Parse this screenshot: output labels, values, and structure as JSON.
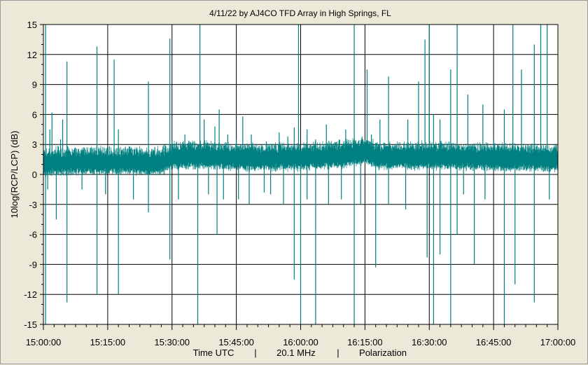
{
  "chart_data": {
    "type": "line",
    "title": "4/11/22  by  AJ4CO TFD Array  in  High Springs, FL",
    "ylabel": "10log(RCP/LCP) (dB)",
    "xlabel_parts": [
      "Time UTC",
      "|",
      "20.1 MHz",
      "|",
      "Polarization"
    ],
    "ylim": [
      -15,
      15
    ],
    "yticks": [
      15,
      12,
      9,
      6,
      3,
      0,
      -3,
      -6,
      -9,
      -12,
      -15
    ],
    "ytick_labels": [
      "15",
      "12",
      "9",
      "6",
      "3",
      "0",
      "-3",
      "-6",
      "-9",
      "-12",
      "-15"
    ],
    "xlim": [
      "15:00:00",
      "17:00:00"
    ],
    "xticks": [
      "15:00:00",
      "15:15:00",
      "15:30:00",
      "15:45:00",
      "16:00:00",
      "16:15:00",
      "16:30:00",
      "16:45:00",
      "17:00:00"
    ],
    "grid": true,
    "colors": {
      "series": "#008080",
      "background": "#ffffff",
      "grid": "#000000"
    },
    "series": [
      {
        "baseline": [
          [
            "15:00:00",
            1.0
          ],
          [
            "15:10:00",
            1.1
          ],
          [
            "15:20:00",
            1.1
          ],
          [
            "15:27:00",
            1.0
          ],
          [
            "15:30:00",
            1.6
          ],
          [
            "15:35:00",
            1.7
          ],
          [
            "15:45:00",
            1.5
          ],
          [
            "16:00:00",
            1.5
          ],
          [
            "16:10:00",
            1.8
          ],
          [
            "16:15:00",
            2.1
          ],
          [
            "16:18:00",
            1.6
          ],
          [
            "16:30:00",
            1.6
          ],
          [
            "16:45:00",
            1.5
          ],
          [
            "17:00:00",
            1.4
          ]
        ],
        "noise_band": [
          -0.8,
          1.3
        ],
        "spikes_up": [
          [
            "15:00:30",
            15
          ],
          [
            "15:01:30",
            4.5
          ],
          [
            "15:02:00",
            6.2
          ],
          [
            "15:03:30",
            2.8
          ],
          [
            "15:04:00",
            3.5
          ],
          [
            "15:04:30",
            5.5
          ],
          [
            "15:05:30",
            11.3
          ],
          [
            "15:07:30",
            2.6
          ],
          [
            "15:12:30",
            12.8
          ],
          [
            "15:13:00",
            2.6
          ],
          [
            "15:16:30",
            11.5
          ],
          [
            "15:17:30",
            4.5
          ],
          [
            "15:20:00",
            2.8
          ],
          [
            "15:24:30",
            9.3
          ],
          [
            "15:29:30",
            13.6
          ],
          [
            "15:31:00",
            3.2
          ],
          [
            "15:33:00",
            4.0
          ],
          [
            "15:36:30",
            15
          ],
          [
            "15:37:30",
            5.5
          ],
          [
            "15:40:00",
            4.8
          ],
          [
            "15:41:00",
            6.5
          ],
          [
            "15:43:00",
            4.0
          ],
          [
            "15:45:00",
            3.5
          ],
          [
            "15:46:30",
            5.8
          ],
          [
            "15:48:30",
            4.0
          ],
          [
            "15:52:00",
            3.3
          ],
          [
            "15:55:00",
            4.2
          ],
          [
            "15:57:00",
            3.8
          ],
          [
            "15:58:30",
            4.7
          ],
          [
            "15:59:30",
            15
          ],
          [
            "16:01:30",
            4.5
          ],
          [
            "16:03:30",
            3.5
          ],
          [
            "16:06:00",
            5.0
          ],
          [
            "16:09:00",
            3.5
          ],
          [
            "16:10:30",
            4.5
          ],
          [
            "16:12:30",
            15
          ],
          [
            "16:15:30",
            10.5
          ],
          [
            "16:16:30",
            4.0
          ],
          [
            "16:18:30",
            5.5
          ],
          [
            "16:20:30",
            9.8
          ],
          [
            "16:25:00",
            5.5
          ],
          [
            "16:27:30",
            9.3
          ],
          [
            "16:29:00",
            13.5
          ],
          [
            "16:30:00",
            15
          ],
          [
            "16:31:00",
            6.0
          ],
          [
            "16:32:30",
            5.5
          ],
          [
            "16:35:00",
            10.5
          ],
          [
            "16:36:30",
            15
          ],
          [
            "16:39:00",
            8.0
          ],
          [
            "16:42:30",
            7.0
          ],
          [
            "16:45:00",
            3.5
          ],
          [
            "16:47:30",
            6.5
          ],
          [
            "16:49:30",
            15
          ],
          [
            "16:51:30",
            10.5
          ],
          [
            "16:53:00",
            3.0
          ],
          [
            "16:54:30",
            13.0
          ],
          [
            "16:56:00",
            15
          ],
          [
            "16:57:30",
            15
          ],
          [
            "16:59:30",
            3.0
          ]
        ],
        "spikes_down": [
          [
            "15:00:30",
            -15
          ],
          [
            "15:01:00",
            -1.5
          ],
          [
            "15:03:00",
            -4.5
          ],
          [
            "15:05:30",
            -12.8
          ],
          [
            "15:09:00",
            -1.5
          ],
          [
            "15:12:30",
            -12.0
          ],
          [
            "15:14:30",
            -2.0
          ],
          [
            "15:17:30",
            -12.0
          ],
          [
            "15:21:00",
            -2.5
          ],
          [
            "15:24:30",
            -3.8
          ],
          [
            "15:29:30",
            -8.5
          ],
          [
            "15:31:30",
            -2.5
          ],
          [
            "15:36:00",
            -15
          ],
          [
            "15:38:30",
            -2.0
          ],
          [
            "15:40:30",
            -6.0
          ],
          [
            "15:42:00",
            -2.5
          ],
          [
            "15:45:30",
            -2.5
          ],
          [
            "15:48:00",
            -3.0
          ],
          [
            "15:51:30",
            -1.8
          ],
          [
            "15:53:00",
            -2.0
          ],
          [
            "15:56:00",
            -3.0
          ],
          [
            "15:58:30",
            -10.5
          ],
          [
            "16:00:00",
            -15
          ],
          [
            "16:01:30",
            -2.5
          ],
          [
            "16:03:30",
            -15
          ],
          [
            "16:06:30",
            -3.0
          ],
          [
            "16:09:30",
            -2.5
          ],
          [
            "16:12:30",
            -15
          ],
          [
            "16:14:00",
            -3.0
          ],
          [
            "16:17:30",
            -9.3
          ],
          [
            "16:20:30",
            -3.0
          ],
          [
            "16:24:30",
            -3.5
          ],
          [
            "16:29:30",
            -8.3
          ],
          [
            "16:31:00",
            -15
          ],
          [
            "16:32:30",
            -8.0
          ],
          [
            "16:35:00",
            -15
          ],
          [
            "16:36:30",
            -6.0
          ],
          [
            "16:38:00",
            -2.0
          ],
          [
            "16:40:30",
            -9.0
          ],
          [
            "16:43:00",
            -2.5
          ],
          [
            "16:47:30",
            -15
          ],
          [
            "16:50:00",
            -11.0
          ],
          [
            "16:54:30",
            -12.8
          ],
          [
            "16:58:00",
            -2.5
          ]
        ]
      }
    ]
  }
}
